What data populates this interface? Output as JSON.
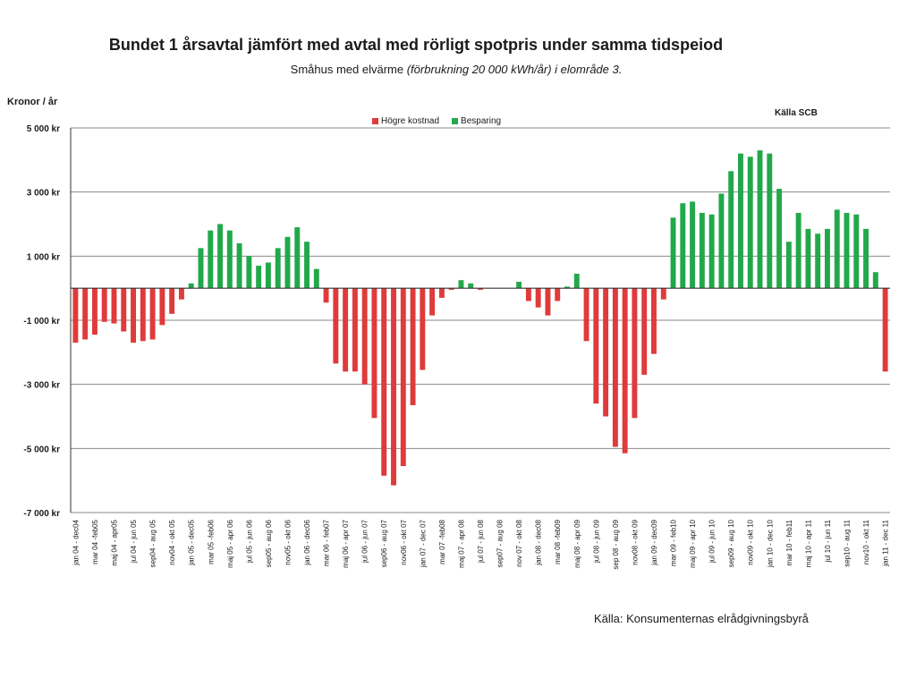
{
  "chart_data": {
    "type": "bar",
    "title": "Bundet 1 årsavtal jämfört med avtal med rörligt spotpris under samma tidspeiod",
    "subtitle": {
      "plain": "Småhus med elvärme ",
      "italic": "(förbrukning 20 000 kWh/år) i  elområde 3."
    },
    "ylabel": "Kronor / år",
    "source_note": "Källa SCB",
    "ylim": [
      -7000,
      5000
    ],
    "yticks": [
      5000,
      3000,
      1000,
      -1000,
      -3000,
      -5000,
      -7000
    ],
    "ytick_labels": [
      "5 000 kr",
      "3 000 kr",
      "1 000 kr",
      "-1 000 kr",
      "-3 000 kr",
      "-5 000 kr",
      "-7 000 kr"
    ],
    "grid": true,
    "legend_position": "top-center",
    "legend": [
      {
        "label": "Högre kostnad",
        "color": "#e03a3a"
      },
      {
        "label": "Besparing",
        "color": "#22a84a"
      }
    ],
    "categories_labeled": [
      "jan 04 - dec04",
      "mar 04 -feb05",
      "maj 04 - apr05",
      "jul 04 - jun 05",
      "sep04 - aug 05",
      "nov04 - okt 05",
      "jan 05 - dec05",
      "mar 05 -feb06",
      "maj 05 - apr 06",
      "jul 05 - jun 06",
      "sep05 - aug 06",
      "nov05 - okt 06",
      "jan 06 - dec06",
      "mar 06 - feb07",
      "maj 06 - apr 07",
      "jul 06 - jun 07",
      "sep06 - aug 07",
      "nov06 - okt 07",
      "jan 07 - dec 07",
      "mar 07 -feb08",
      "maj 07 - apr 08",
      "jul 07 - jun 08",
      "sep07 - aug 08",
      "nov 07 - okt 08",
      "jan 08 - dec08",
      "mar 08 -feb09",
      "maj 08 - apr 09",
      "jul 08 - jun 09",
      "sep 08 - aug 09",
      "nov08 - okt 09",
      "jan 09 - dec09",
      "mar 09 - feb10",
      "maj 09 - apr 10",
      "jul 09 - jun 10",
      "sep09 - aug 10",
      "nov09 - okt 10",
      "jan 10 - dec 10",
      "mar 10 - feb11",
      "maj 10 - apr 11",
      "jul 10 - jun 11",
      "sep10 - aug 11",
      "nov10 - okt 11",
      "jan 11 - dec 11"
    ],
    "values": [
      -1700,
      -1600,
      -1450,
      -1050,
      -1100,
      -1350,
      -1700,
      -1650,
      -1600,
      -1150,
      -800,
      -350,
      150,
      1250,
      1800,
      2000,
      1800,
      1400,
      1000,
      700,
      800,
      1250,
      1600,
      1900,
      1450,
      600,
      -450,
      -2350,
      -2600,
      -2600,
      -3000,
      -4050,
      -5850,
      -6150,
      -5550,
      -3650,
      -2550,
      -850,
      -300,
      -50,
      250,
      150,
      -50,
      0,
      0,
      0,
      200,
      -400,
      -600,
      -850,
      -400,
      50,
      450,
      -1650,
      -3600,
      -4000,
      -4950,
      -5150,
      -4050,
      -2700,
      -2050,
      -350,
      2200,
      2650,
      2700,
      2350,
      2300,
      2950,
      3650,
      4200,
      4100,
      4300,
      4200,
      3100,
      1450,
      2350,
      1850,
      1700,
      1850,
      2450,
      2350,
      2300,
      1850,
      500,
      -2600
    ],
    "colors": {
      "negative": "#e03a3a",
      "positive": "#22a84a",
      "grid": "#8a8a8a",
      "axis": "#333333"
    }
  },
  "footer": "Källa: Konsumenternas elrådgivningsbyrå"
}
